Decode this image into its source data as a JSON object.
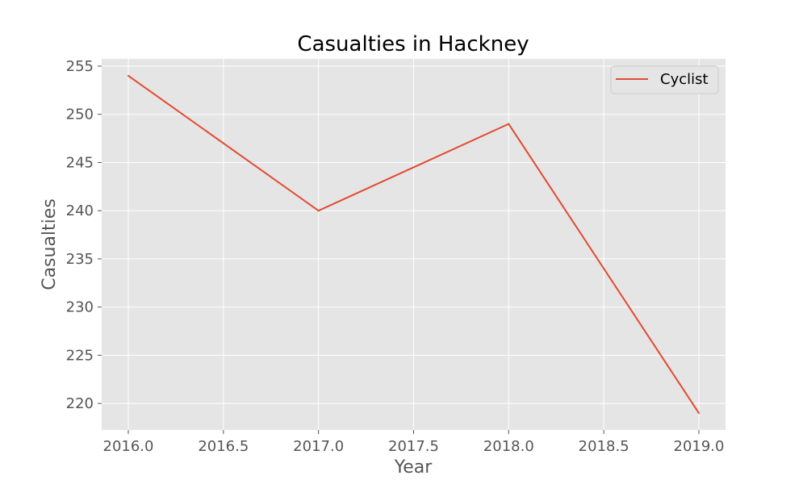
{
  "chart_data": {
    "type": "line",
    "title": "Casualties in Hackney",
    "xlabel": "Year",
    "ylabel": "Casualties",
    "x": [
      2016,
      2017,
      2018,
      2019
    ],
    "series": [
      {
        "name": "Cyclist",
        "values": [
          254,
          240,
          249,
          219
        ],
        "color": "#E24A33"
      }
    ],
    "xlim": [
      2015.86,
      2019.14
    ],
    "ylim": [
      217.25,
      255.75
    ],
    "xticks": [
      2016.0,
      2016.5,
      2017.0,
      2017.5,
      2018.0,
      2018.5,
      2019.0
    ],
    "xtick_labels": [
      "2016.0",
      "2016.5",
      "2017.0",
      "2017.5",
      "2018.0",
      "2018.5",
      "2019.0"
    ],
    "yticks": [
      220,
      225,
      230,
      235,
      240,
      245,
      250,
      255
    ],
    "ytick_labels": [
      "220",
      "225",
      "230",
      "235",
      "240",
      "245",
      "250",
      "255"
    ],
    "grid": true,
    "legend_position": "top-right",
    "colors": {
      "plot_background": "#E5E5E5",
      "grid": "#FFFFFF"
    }
  }
}
